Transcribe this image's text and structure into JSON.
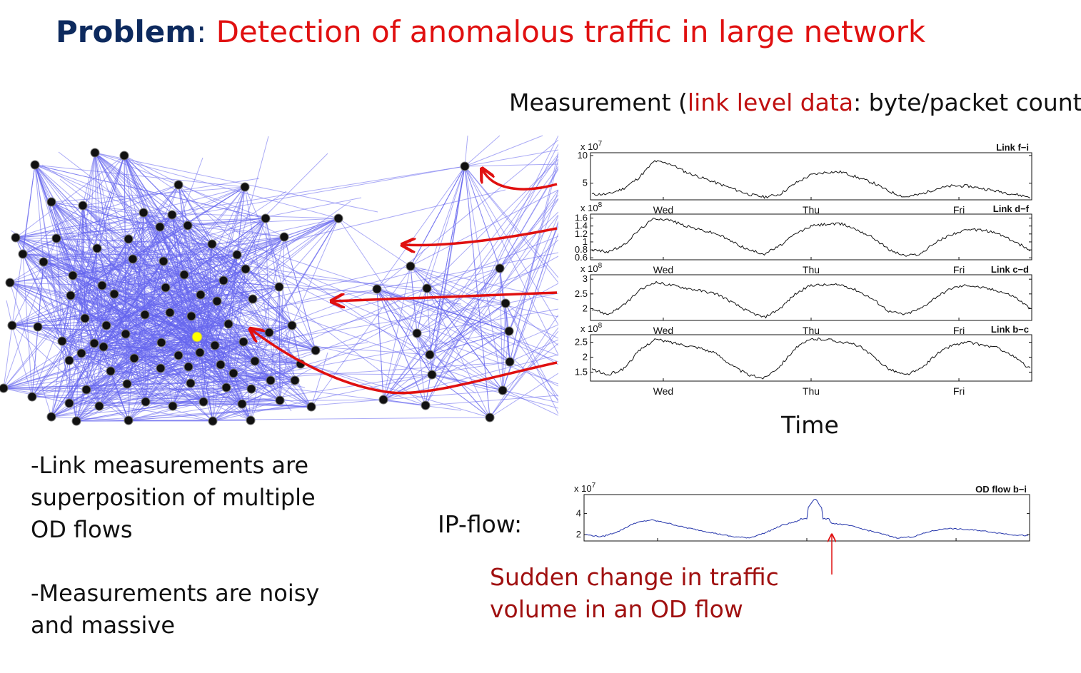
{
  "title": {
    "keyword": "Problem",
    "colon": ":",
    "rest": " Detection of anomalous traffic in large network"
  },
  "measurement": {
    "prefix": "Measurement (",
    "highlight": "link level data",
    "suffix": ": byte/packet count)"
  },
  "time_label": "Time",
  "ipflow_label": "IP-flow:",
  "bullets": [
    "-Link measurements are superposition of multiple OD flows",
    "-Measurements are noisy and massive"
  ],
  "annotation": "Sudden change in traffic volume in an OD flow",
  "colors": {
    "edge": "#6666ee",
    "node": "#111111",
    "highlight_node": "#ffff00",
    "arrow": "#e01010",
    "flow_line": "#2233aa"
  },
  "chart_data": [
    {
      "type": "line",
      "title": "Link f−i",
      "scale_label": "x 10",
      "scale_exp": "7",
      "yticks": [
        "10",
        "5"
      ],
      "xticks": [
        "Wed",
        "Thu",
        "Fri"
      ],
      "values": [
        3,
        3,
        4,
        6,
        9,
        8.5,
        7,
        6,
        5,
        4,
        3,
        2.5,
        3,
        5,
        6.5,
        7,
        7,
        6,
        5,
        3.5,
        2.5,
        3,
        4,
        4.5,
        4.5,
        4,
        3.5,
        3,
        2.5
      ]
    },
    {
      "type": "line",
      "title": "Link d−f",
      "scale_label": "x 10",
      "scale_exp": "8",
      "yticks": [
        "1.6",
        "1.4",
        "1.2",
        "1",
        "0.8",
        "0.6"
      ],
      "xticks": [
        "Wed",
        "Thu",
        "Fri"
      ],
      "values": [
        0.8,
        0.75,
        0.9,
        1.3,
        1.6,
        1.55,
        1.4,
        1.3,
        1.2,
        1,
        0.8,
        0.7,
        0.9,
        1.2,
        1.4,
        1.45,
        1.45,
        1.3,
        1.1,
        0.8,
        0.65,
        0.7,
        1,
        1.2,
        1.3,
        1.3,
        1.2,
        1,
        0.8
      ]
    },
    {
      "type": "line",
      "title": "Link c−d",
      "scale_label": "x 10",
      "scale_exp": "8",
      "yticks": [
        "3",
        "2.5",
        "2"
      ],
      "xticks": [
        "Wed",
        "Thu",
        "Fri"
      ],
      "values": [
        2,
        1.8,
        2.1,
        2.6,
        2.9,
        2.8,
        2.7,
        2.6,
        2.5,
        2.2,
        1.9,
        1.7,
        2,
        2.5,
        2.8,
        2.8,
        2.8,
        2.6,
        2.3,
        1.9,
        1.8,
        2,
        2.4,
        2.7,
        2.8,
        2.7,
        2.6,
        2.4,
        2
      ]
    },
    {
      "type": "line",
      "title": "Link b−c",
      "scale_label": "x 10",
      "scale_exp": "8",
      "yticks": [
        "2.5",
        "2",
        "1.5"
      ],
      "xticks": [
        "Wed",
        "Thu",
        "Fri"
      ],
      "values": [
        1.6,
        1.4,
        1.6,
        2.2,
        2.6,
        2.5,
        2.4,
        2.3,
        2.1,
        1.7,
        1.4,
        1.3,
        1.7,
        2.3,
        2.6,
        2.6,
        2.5,
        2.4,
        2,
        1.6,
        1.4,
        1.6,
        2.1,
        2.4,
        2.5,
        2.4,
        2.3,
        2,
        1.6
      ]
    },
    {
      "type": "line",
      "title": "OD flow b−i",
      "scale_label": "x 10",
      "scale_exp": "7",
      "yticks": [
        "4",
        "2"
      ],
      "xticks": [],
      "values": [
        2,
        1.8,
        2.3,
        3.1,
        3.4,
        3.1,
        2.7,
        2.4,
        2.1,
        1.8,
        1.7,
        2.2,
        2.9,
        3.3,
        5.5,
        3.1,
        2.9,
        2.5,
        2.1,
        1.7,
        1.8,
        2.3,
        2.6,
        2.5,
        2.4,
        2.2,
        2,
        1.9
      ]
    }
  ]
}
